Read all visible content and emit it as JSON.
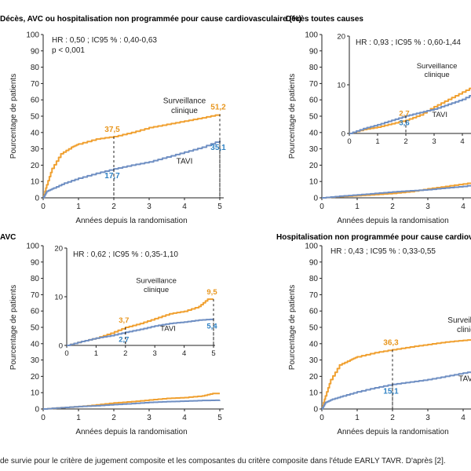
{
  "caption": "de survie pour le critère de jugement composite et les composantes du critère composite dans l'étude EARLY TAVR. D'après [2].",
  "colors": {
    "surveillance": "#f0a030",
    "tavi": "#6f8fc3",
    "label_tavi": "#2f82c4",
    "label_surv": "#e8961e",
    "axis": "#222222"
  },
  "chart_data": [
    {
      "type": "line",
      "title": "Décès, AVC ou hospitalisation non programmée pour cause cardiovasculaire (%)",
      "xlabel": "Années depuis la randomisation",
      "ylabel": "Pourcentage de patients",
      "xlim": [
        0,
        5
      ],
      "ylim": [
        0,
        100
      ],
      "xticks": [
        0,
        1,
        2,
        3,
        4,
        5
      ],
      "yticks": [
        0,
        10,
        20,
        30,
        40,
        50,
        60,
        70,
        80,
        90,
        100
      ],
      "hr_text": "HR : 0,50 ; IC95 % : 0,40-0,63",
      "p_text": "p < 0,001",
      "series": [
        {
          "name": "Surveillance clinique",
          "x": [
            0,
            0.1,
            0.25,
            0.5,
            0.8,
            1,
            1.5,
            2,
            2.5,
            3,
            3.5,
            4,
            4.5,
            5
          ],
          "y": [
            0,
            8,
            18,
            27,
            31,
            33,
            36,
            37.5,
            40,
            43,
            45,
            47,
            49,
            51.2
          ]
        },
        {
          "name": "TAVI",
          "x": [
            0,
            0.1,
            0.3,
            0.6,
            1,
            1.5,
            2,
            2.5,
            3,
            3.5,
            4,
            4.5,
            5
          ],
          "y": [
            0,
            4,
            6,
            9,
            12,
            15,
            17.7,
            20,
            22,
            25,
            28,
            31,
            35.1
          ]
        }
      ],
      "annotations": [
        {
          "x": 2,
          "y": 37.5,
          "text": "37,5",
          "series": "surveillance"
        },
        {
          "x": 2,
          "y": 17.7,
          "text": "17,7",
          "series": "tavi"
        },
        {
          "x": 5,
          "y": 51.2,
          "text": "51,2",
          "series": "surveillance"
        },
        {
          "x": 5,
          "y": 35.1,
          "text": "35,1",
          "series": "tavi"
        }
      ],
      "labels": [
        {
          "text": "Surveillance",
          "x": 4.0,
          "y": 58
        },
        {
          "text": "clinique",
          "x": 4.0,
          "y": 52
        },
        {
          "text": "TAVI",
          "x": 4.0,
          "y": 21
        }
      ]
    },
    {
      "type": "line",
      "title": "Décès toutes causes",
      "xlabel": "Années depuis la randomisation",
      "ylabel": "Pourcentage de patients",
      "xlim": [
        0,
        5
      ],
      "ylim": [
        0,
        100
      ],
      "xticks": [
        0,
        1,
        2,
        3,
        4
      ],
      "yticks": [
        0,
        10,
        20,
        30,
        40,
        50,
        60,
        70,
        80,
        90,
        100
      ],
      "series": [
        {
          "name": "Surveillance clinique",
          "x": [
            0,
            0.5,
            1,
            1.5,
            2,
            2.5,
            3,
            3.5,
            4,
            4.5,
            5
          ],
          "y": [
            0,
            0.8,
            1.3,
            2,
            2.7,
            3.8,
            5.5,
            7,
            8.5,
            10,
            11
          ]
        },
        {
          "name": "TAVI",
          "x": [
            0,
            0.5,
            1,
            1.5,
            2,
            2.5,
            3,
            3.5,
            4,
            4.5,
            5
          ],
          "y": [
            0,
            1,
            1.8,
            2.7,
            3.6,
            4.3,
            5,
            6,
            7,
            8.5,
            9.5
          ]
        }
      ],
      "inset": {
        "hr_text": "HR : 0,93 ; IC95 % : 0,60-1,44",
        "xlim": [
          0,
          5
        ],
        "ylim": [
          0,
          20
        ],
        "xticks": [
          0,
          1,
          2,
          3,
          4
        ],
        "yticks": [
          0,
          10,
          20
        ],
        "series": [
          {
            "name": "Surveillance clinique",
            "x": [
              0,
              0.5,
              1,
              1.5,
              2,
              2.5,
              3,
              3.5,
              4,
              4.5,
              5
            ],
            "y": [
              0,
              0.8,
              1.3,
              2,
              2.7,
              3.8,
              5.5,
              7,
              8.5,
              10,
              11
            ]
          },
          {
            "name": "TAVI",
            "x": [
              0,
              0.5,
              1,
              1.5,
              2,
              2.5,
              3,
              3.5,
              4,
              4.5,
              5
            ],
            "y": [
              0,
              1,
              1.8,
              2.7,
              3.6,
              4.3,
              5,
              6,
              7,
              8.5,
              9.5
            ]
          }
        ],
        "annotations": [
          {
            "x": 2,
            "y": 3.6,
            "text": "3,6",
            "series": "tavi"
          },
          {
            "x": 2,
            "y": 2.7,
            "text": "2,7",
            "series": "surveillance"
          }
        ],
        "labels": [
          {
            "text": "Surveillance",
            "x": 3.1,
            "y": 13.4
          },
          {
            "text": "clinique",
            "x": 3.1,
            "y": 11.6
          },
          {
            "text": "TAVI",
            "x": 3.2,
            "y": 3.4
          }
        ]
      }
    },
    {
      "type": "line",
      "title": "AVC",
      "xlabel": "Années depuis la randomisation",
      "ylabel": "Pourcentage de patients",
      "xlim": [
        0,
        5
      ],
      "ylim": [
        0,
        100
      ],
      "xticks": [
        0,
        1,
        2,
        3,
        4,
        5
      ],
      "yticks": [
        0,
        10,
        20,
        30,
        40,
        50,
        60,
        70,
        80,
        90,
        100
      ],
      "series": [
        {
          "name": "Surveillance clinique",
          "x": [
            0,
            0.5,
            1,
            1.5,
            2,
            2.5,
            3,
            3.5,
            4,
            4.5,
            4.8,
            5
          ],
          "y": [
            0,
            0.8,
            1.5,
            2.5,
            3.7,
            4.5,
            5.5,
            6.5,
            7,
            8,
            9.5,
            9.5
          ]
        },
        {
          "name": "TAVI",
          "x": [
            0,
            0.5,
            1,
            1.5,
            2,
            2.5,
            3,
            3.5,
            4,
            4.5,
            5
          ],
          "y": [
            0,
            0.8,
            1.5,
            2,
            2.7,
            3.3,
            4,
            4.5,
            4.8,
            5.2,
            5.4
          ]
        }
      ],
      "inset": {
        "hr_text": "HR : 0,62 ; IC95 % : 0,35-1,10",
        "xlim": [
          0,
          5
        ],
        "ylim": [
          0,
          20
        ],
        "xticks": [
          0,
          1,
          2,
          3,
          4,
          5
        ],
        "yticks": [
          0,
          10,
          20
        ],
        "series": [
          {
            "name": "Surveillance clinique",
            "x": [
              0,
              0.5,
              1,
              1.5,
              2,
              2.5,
              3,
              3.5,
              4,
              4.5,
              4.8,
              5
            ],
            "y": [
              0,
              0.8,
              1.5,
              2.5,
              3.7,
              4.5,
              5.5,
              6.5,
              7,
              8,
              9.5,
              9.5
            ]
          },
          {
            "name": "TAVI",
            "x": [
              0,
              0.5,
              1,
              1.5,
              2,
              2.5,
              3,
              3.5,
              4,
              4.5,
              5
            ],
            "y": [
              0,
              0.8,
              1.5,
              2,
              2.7,
              3.3,
              4,
              4.5,
              4.8,
              5.2,
              5.4
            ]
          }
        ],
        "annotations": [
          {
            "x": 2,
            "y": 3.7,
            "text": "3,7",
            "series": "surveillance"
          },
          {
            "x": 2,
            "y": 2.7,
            "text": "2,7",
            "series": "tavi"
          },
          {
            "x": 5,
            "y": 9.5,
            "text": "9,5",
            "series": "surveillance"
          },
          {
            "x": 5,
            "y": 5.4,
            "text": "5,4",
            "series": "tavi"
          }
        ],
        "labels": [
          {
            "text": "Surveillance",
            "x": 3.05,
            "y": 12.8
          },
          {
            "text": "clinique",
            "x": 3.05,
            "y": 11.0
          },
          {
            "text": "TAVI",
            "x": 3.45,
            "y": 3.0
          }
        ]
      }
    },
    {
      "type": "line",
      "title": "Hospitalisation non programmée pour cause cardiovas",
      "xlabel": "Années depuis la randomisation",
      "ylabel": "Pourcentage de patients",
      "xlim": [
        0,
        5
      ],
      "ylim": [
        0,
        100
      ],
      "xticks": [
        0,
        1,
        2,
        3,
        4
      ],
      "yticks": [
        0,
        10,
        20,
        30,
        40,
        50,
        60,
        70,
        80,
        90,
        100
      ],
      "hr_text": "HR : 0,43 ; IC95 % : 0,33-0,55",
      "series": [
        {
          "name": "Surveillance clinique",
          "x": [
            0,
            0.1,
            0.25,
            0.5,
            0.8,
            1,
            1.5,
            2,
            2.5,
            3,
            3.5,
            4,
            4.5,
            5
          ],
          "y": [
            0,
            8,
            18,
            27,
            30,
            32,
            34.5,
            36.3,
            38,
            39.5,
            41,
            42,
            43,
            44
          ]
        },
        {
          "name": "TAVI",
          "x": [
            0,
            0.1,
            0.3,
            0.6,
            1,
            1.5,
            2,
            2.5,
            3,
            3.5,
            4,
            4.5,
            5
          ],
          "y": [
            0,
            4,
            6,
            8,
            10.5,
            13,
            15.1,
            16.5,
            18,
            20,
            22,
            24,
            26
          ]
        }
      ],
      "annotations": [
        {
          "x": 2,
          "y": 36.3,
          "text": "36,3",
          "series": "surveillance"
        },
        {
          "x": 2,
          "y": 15.1,
          "text": "15,1",
          "series": "tavi"
        }
      ],
      "labels": [
        {
          "text": "Surveillan",
          "x": 4.05,
          "y": 53
        },
        {
          "text": "clinique",
          "x": 4.2,
          "y": 47
        },
        {
          "text": "TAVI",
          "x": 4.1,
          "y": 17
        }
      ]
    }
  ]
}
